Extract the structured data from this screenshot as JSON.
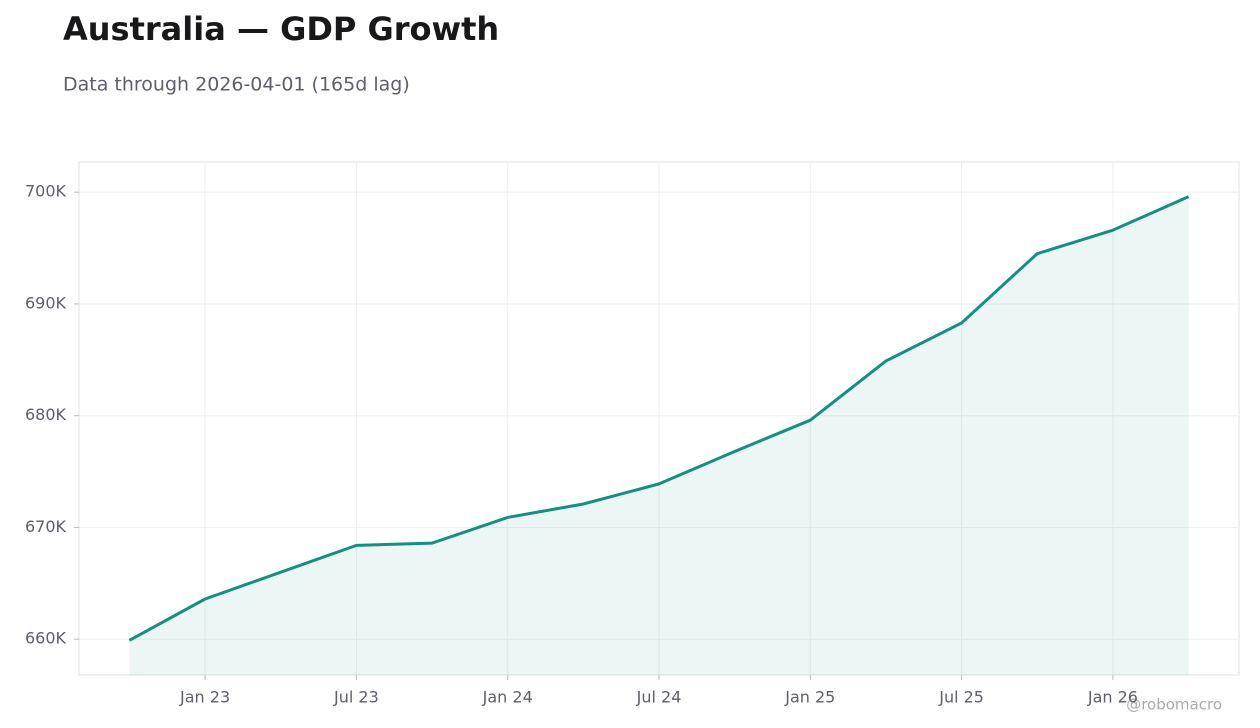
{
  "chart_data": {
    "type": "line",
    "title": "Australia — GDP Growth",
    "subtitle": "Data through 2026-04-01 (165d lag)",
    "watermark": "@robomacro",
    "x": [
      "2022-10",
      "2023-01",
      "2023-04",
      "2023-07",
      "2023-10",
      "2024-01",
      "2024-04",
      "2024-07",
      "2024-10",
      "2025-01",
      "2025-04",
      "2025-07",
      "2025-10",
      "2026-01",
      "2026-04"
    ],
    "series": [
      {
        "name": "GDP",
        "color": "#12917f",
        "values": [
          659900,
          663600,
          666000,
          668400,
          668600,
          670900,
          672100,
          673900,
          676800,
          679600,
          684900,
          688300,
          694500,
          696600,
          699600
        ]
      }
    ],
    "xlim": [
      "2022-08",
      "2026-06"
    ],
    "xticks": [
      {
        "value": "2023-01",
        "label": "Jan 23"
      },
      {
        "value": "2023-07",
        "label": "Jul 23"
      },
      {
        "value": "2024-01",
        "label": "Jan 24"
      },
      {
        "value": "2024-07",
        "label": "Jul 24"
      },
      {
        "value": "2025-01",
        "label": "Jan 25"
      },
      {
        "value": "2025-07",
        "label": "Jul 25"
      },
      {
        "value": "2026-01",
        "label": "Jan 26"
      }
    ],
    "ylim": [
      656800,
      702700
    ],
    "yticks": [
      {
        "value": 660000,
        "label": "660K"
      },
      {
        "value": 670000,
        "label": "670K"
      },
      {
        "value": 680000,
        "label": "680K"
      },
      {
        "value": 690000,
        "label": "690K"
      },
      {
        "value": 700000,
        "label": "700K"
      }
    ],
    "grid": true
  }
}
